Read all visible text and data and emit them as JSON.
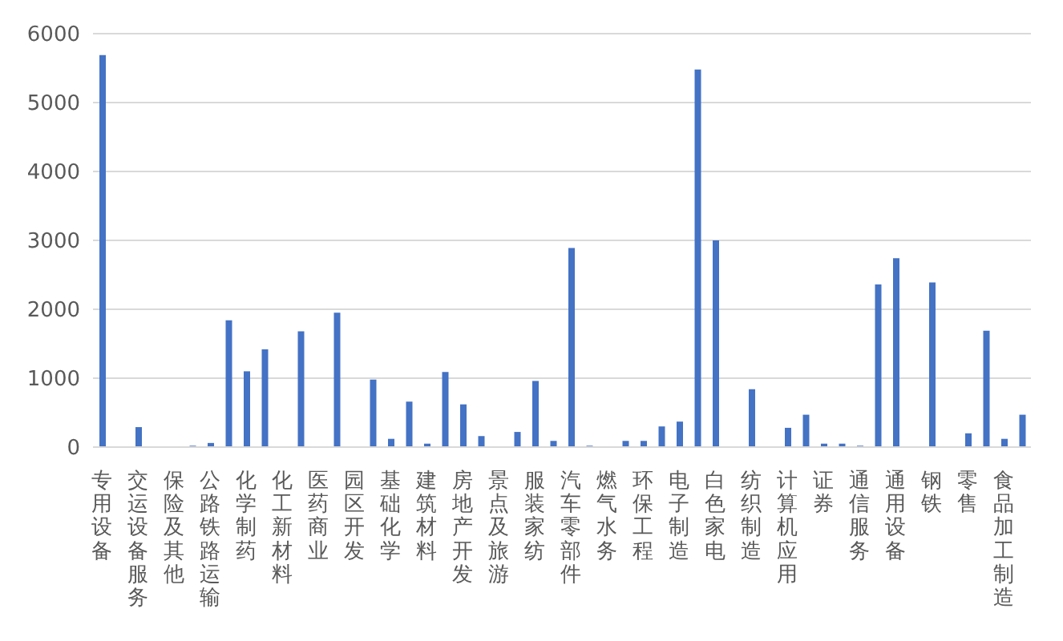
{
  "chart_data": {
    "type": "bar",
    "categories": [
      "专用设备",
      null,
      "交运设备服务",
      null,
      "保险及其他",
      null,
      "公路铁路运输",
      null,
      "化学制药",
      null,
      "化工新材料",
      null,
      "医药商业",
      null,
      "园区开发",
      null,
      "基础化学",
      null,
      "建筑材料",
      null,
      "房地产开发",
      null,
      "景点及旅游",
      null,
      "服装家纺",
      null,
      "汽车零部件",
      null,
      "燃气水务",
      null,
      "环保工程",
      null,
      "电子制造",
      null,
      "白色家电",
      null,
      "纺织制造",
      null,
      "计算机应用",
      null,
      "证券",
      null,
      "通信服务",
      null,
      "通用设备",
      null,
      "钢铁",
      null,
      "零售",
      null,
      "食品加工制造",
      null
    ],
    "values": [
      5690,
      0,
      290,
      0,
      0,
      20,
      60,
      1840,
      1100,
      1420,
      0,
      1680,
      0,
      1950,
      0,
      980,
      120,
      660,
      50,
      1090,
      620,
      160,
      0,
      220,
      960,
      90,
      2890,
      20,
      0,
      90,
      90,
      300,
      370,
      5480,
      3000,
      0,
      840,
      0,
      280,
      470,
      50,
      50,
      20,
      2360,
      2740,
      0,
      2390,
      0,
      200,
      1690,
      120,
      470
    ],
    "color": "#4472c4",
    "ylim": [
      0,
      6000
    ],
    "yticks": [
      0,
      1000,
      2000,
      3000,
      4000,
      5000,
      6000
    ],
    "grid": "y"
  }
}
